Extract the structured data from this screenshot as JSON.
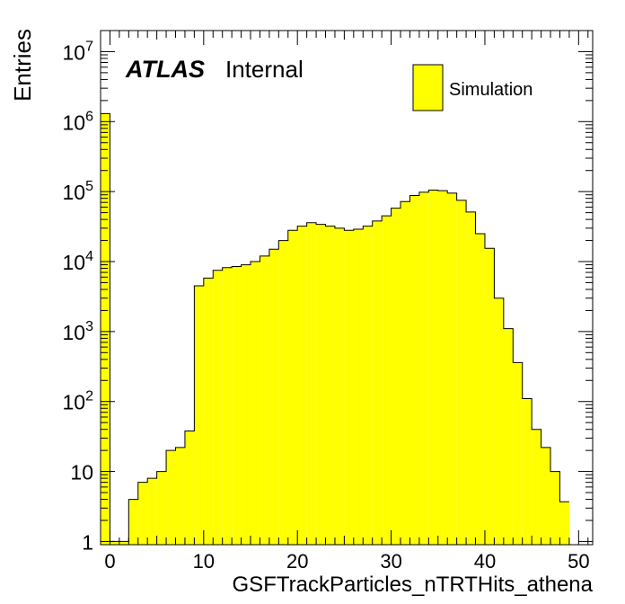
{
  "chart_data": {
    "type": "bar",
    "xlabel": "GSFTrackParticles_nTRTHits_athena",
    "ylabel": "Entries",
    "xlim": [
      -1,
      51.5
    ],
    "ylim": [
      0.9,
      20000000
    ],
    "y_scale": "log",
    "x_tick_labels": [
      "0",
      "10",
      "20",
      "30",
      "40",
      "50"
    ],
    "y_tick_labels": [
      "1",
      "10",
      "10^2",
      "10^3",
      "10^4",
      "10^5",
      "10^6",
      "10^7"
    ],
    "annotation_bold": "ATLAS",
    "annotation_text": "Internal",
    "legend_position": "top-right",
    "series": [
      {
        "name": "Simulation",
        "color": "#ffff00",
        "bin_width": 1,
        "bin_start": -1,
        "values": [
          1300000,
          1,
          1,
          4,
          7,
          8,
          10,
          20,
          22,
          38,
          4500,
          5800,
          7500,
          8200,
          8500,
          9000,
          10000,
          12000,
          15000,
          20000,
          28000,
          32000,
          36000,
          34000,
          32000,
          30000,
          28000,
          29000,
          32000,
          38000,
          45000,
          58000,
          72000,
          88000,
          98000,
          105000,
          103000,
          95000,
          75000,
          51000,
          25000,
          15500,
          3000,
          1100,
          360,
          110,
          40,
          22,
          10,
          3.7
        ]
      }
    ]
  }
}
